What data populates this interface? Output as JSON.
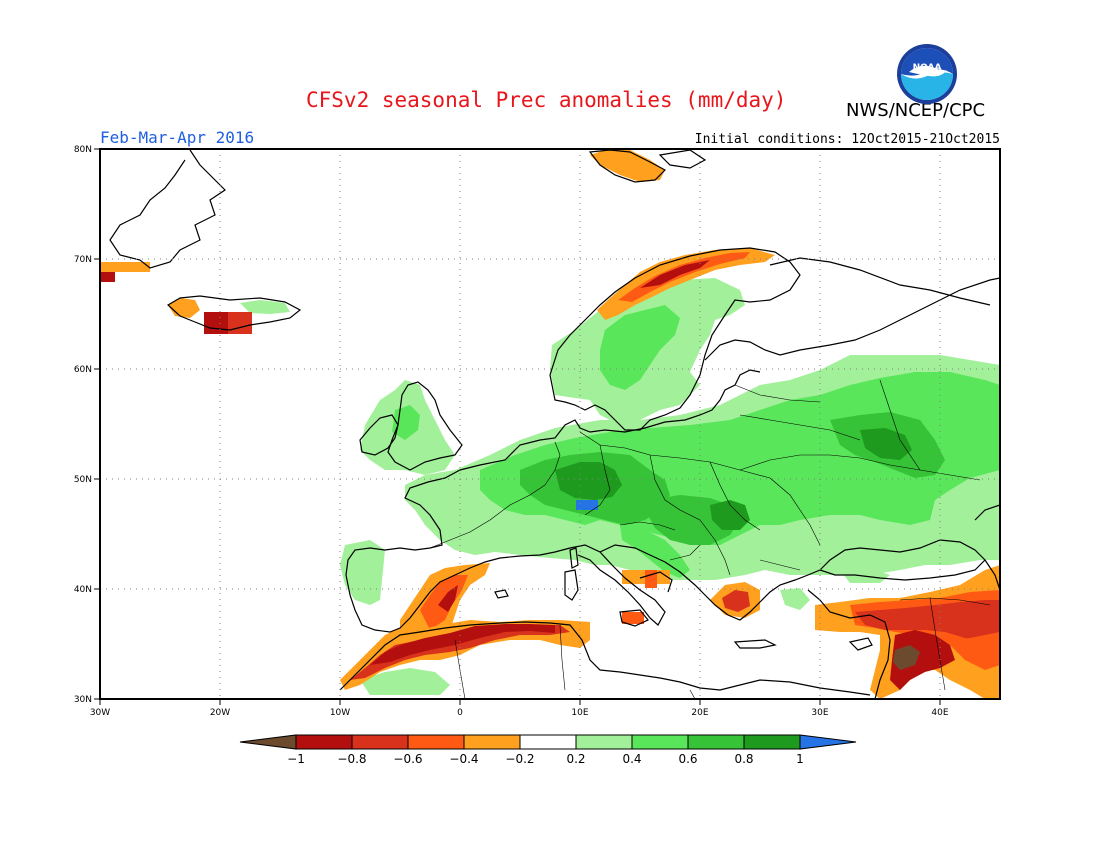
{
  "title": "CFSv2 seasonal Prec anomalies (mm/day)",
  "organization": "NWS/NCEP/CPC",
  "period": "Feb-Mar-Apr 2016",
  "initial_conditions": "Initial conditions: 12Oct2015-21Oct2015",
  "logo": {
    "icon": "noaa-logo",
    "text": "NOAA"
  },
  "map": {
    "lon_range": [
      -30,
      45
    ],
    "lat_range": [
      30,
      80
    ],
    "lon_ticks": [
      "30W",
      "20W",
      "10W",
      "0",
      "10E",
      "20E",
      "30E",
      "40E"
    ],
    "lat_ticks": [
      "30N",
      "40N",
      "50N",
      "60N",
      "70N",
      "80N"
    ],
    "grid": "dotted"
  },
  "colorbar": {
    "ticks": [
      "-1",
      "-0.8",
      "-0.6",
      "-0.4",
      "-0.2",
      "0.2",
      "0.4",
      "0.6",
      "0.8",
      "1"
    ],
    "colors": [
      "#6b4a2e",
      "#b40f0f",
      "#d9321c",
      "#ff5a14",
      "#ffa01e",
      "#ffffff",
      "#a2f09a",
      "#5ae65a",
      "#37c337",
      "#1e9b1e",
      "#2673e6"
    ]
  },
  "chart_data": {
    "type": "heatmap",
    "variable": "Precipitation anomaly",
    "units": "mm/day",
    "regions": [
      {
        "region": "Central Europe (Alps)",
        "lon": [
          5,
          20
        ],
        "lat": [
          44,
          52
        ],
        "level": "0.6 to 0.8"
      },
      {
        "region": "Alps maximum",
        "lon": [
          10,
          11
        ],
        "lat": [
          47,
          48
        ],
        "level": "> 1"
      },
      {
        "region": "France / Benelux",
        "lon": [
          -5,
          8
        ],
        "lat": [
          43,
          53
        ],
        "level": "0.2 to 0.6"
      },
      {
        "region": "British Isles",
        "lon": [
          -10,
          2
        ],
        "lat": [
          50,
          59
        ],
        "level": "0.2 to 0.4"
      },
      {
        "region": "Scandinavia / Baltic",
        "lon": [
          10,
          30
        ],
        "lat": [
          55,
          67
        ],
        "level": "0.2 to 0.6"
      },
      {
        "region": "Western Russia",
        "lon": [
          30,
          45
        ],
        "lat": [
          47,
          61
        ],
        "level": "0.4 to 0.8"
      },
      {
        "region": "Norway coast",
        "lon": [
          12,
          25
        ],
        "lat": [
          65,
          71
        ],
        "level": "-0.4 to -0.8"
      },
      {
        "region": "Iberian east coast",
        "lon": [
          -5,
          1
        ],
        "lat": [
          37,
          42
        ],
        "level": "-0.4 to -0.8"
      },
      {
        "region": "North Africa (Algeria/Tunisia)",
        "lon": [
          -3,
          10
        ],
        "lat": [
          34,
          37
        ],
        "level": "-0.6 to -1"
      },
      {
        "region": "Morocco",
        "lon": [
          -10,
          -4
        ],
        "lat": [
          31,
          35
        ],
        "level": "-0.6 to -0.8"
      },
      {
        "region": "Turkey / Levant",
        "lon": [
          33,
          45
        ],
        "lat": [
          31,
          39
        ],
        "level": "-0.4 to -1"
      },
      {
        "region": "Iceland south coast",
        "lon": [
          -20,
          -17
        ],
        "lat": [
          63,
          65
        ],
        "level": "-0.6 to -0.8"
      },
      {
        "region": "Svalbard",
        "lon": [
          10,
          15
        ],
        "lat": [
          77,
          80
        ],
        "level": "-0.2 to -0.4"
      }
    ]
  }
}
